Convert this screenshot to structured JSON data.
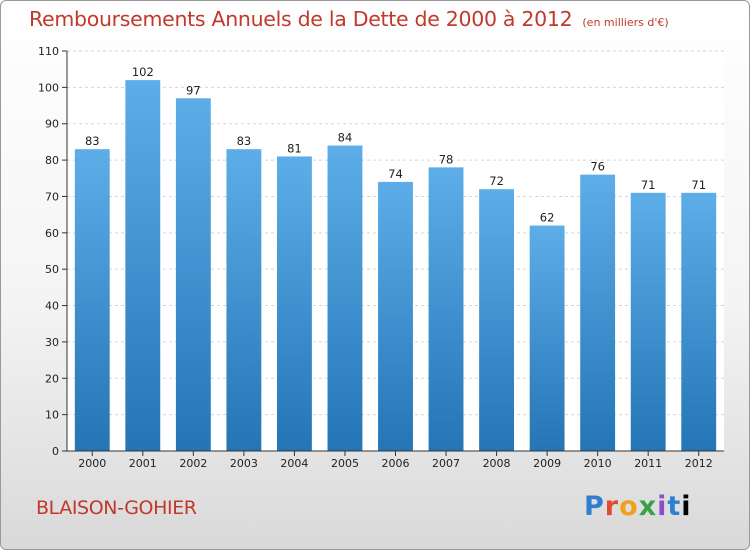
{
  "title": "Remboursements Annuels de la Dette de 2000 à 2012",
  "subtitle": "(en milliers d'€)",
  "commune": "BLAISON-GOHIER",
  "logo": [
    "P",
    "r",
    "o",
    "x",
    "i",
    "t",
    "i"
  ],
  "chart_data": {
    "type": "bar",
    "categories": [
      "2000",
      "2001",
      "2002",
      "2003",
      "2004",
      "2005",
      "2006",
      "2007",
      "2008",
      "2009",
      "2010",
      "2011",
      "2012"
    ],
    "values": [
      83,
      102,
      97,
      83,
      81,
      84,
      74,
      78,
      72,
      62,
      76,
      71,
      71
    ],
    "ylim": [
      0,
      110
    ],
    "yticks": [
      0,
      10,
      20,
      30,
      40,
      50,
      60,
      70,
      80,
      90,
      100,
      110
    ],
    "grid": "horizontal",
    "bar_color_top": "#5dade9",
    "bar_color_bottom": "#2475b5"
  }
}
